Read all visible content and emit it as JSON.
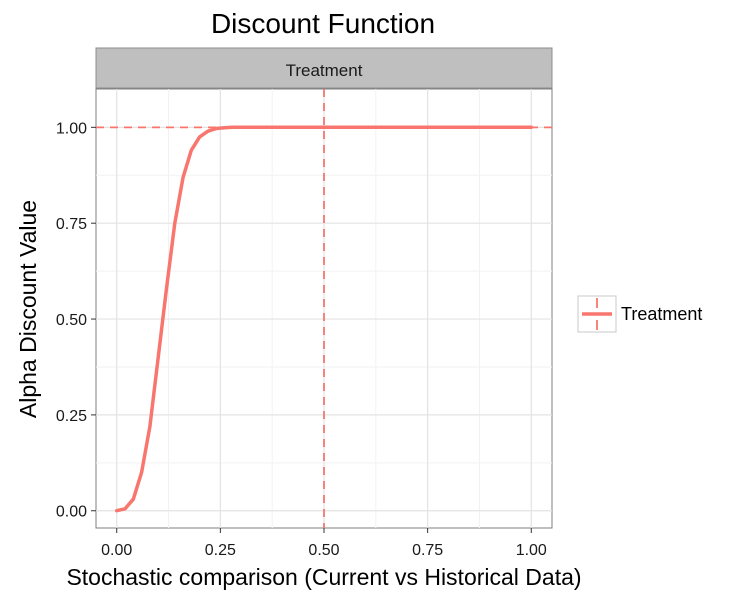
{
  "chart_data": {
    "type": "line",
    "title": "Discount Function",
    "facet_label": "Treatment",
    "xlabel": "Stochastic comparison (Current vs Historical Data)",
    "ylabel": "Alpha Discount Value",
    "xlim": [
      -0.05,
      1.05
    ],
    "ylim": [
      -0.045,
      1.1
    ],
    "x_ticks": [
      "0.00",
      "0.25",
      "0.50",
      "0.75",
      "1.00"
    ],
    "y_ticks": [
      "0.00",
      "0.25",
      "0.50",
      "0.75",
      "1.00"
    ],
    "grid": true,
    "legend": {
      "position": "right",
      "entries": [
        "Treatment"
      ]
    },
    "series": [
      {
        "name": "Treatment",
        "color": "#f8766d",
        "x": [
          0,
          0.02,
          0.04,
          0.06,
          0.08,
          0.1,
          0.12,
          0.14,
          0.16,
          0.18,
          0.2,
          0.22,
          0.24,
          0.26,
          0.28,
          0.3,
          0.35,
          0.4,
          0.5,
          0.6,
          0.7,
          0.8,
          0.9,
          1.0
        ],
        "values": [
          0,
          0.005,
          0.03,
          0.1,
          0.22,
          0.4,
          0.58,
          0.75,
          0.87,
          0.94,
          0.975,
          0.99,
          0.997,
          0.999,
          1.0,
          1.0,
          1.0,
          1.0,
          1.0,
          1.0,
          1.0,
          1.0,
          1.0,
          1.0
        ]
      }
    ],
    "reference_lines": [
      {
        "axis": "y",
        "value": 1.0,
        "style": "dashed",
        "color": "#f8766d"
      },
      {
        "axis": "x",
        "value": 0.5,
        "style": "dashed",
        "color": "#f8766d"
      }
    ]
  }
}
